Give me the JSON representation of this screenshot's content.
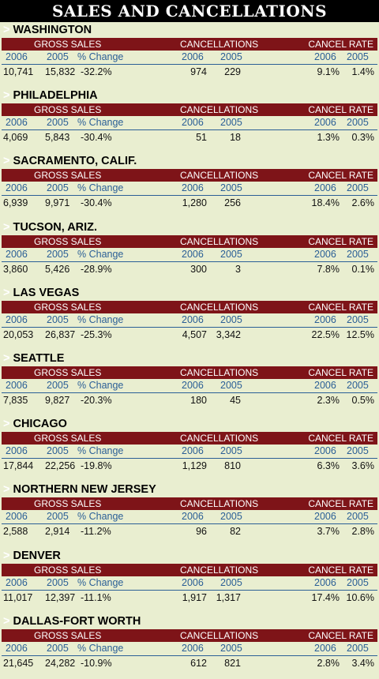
{
  "title": "SALES AND CANCELLATIONS",
  "labels": {
    "gross_sales": "GROSS SALES",
    "cancellations": "CANCELLATIONS",
    "cancel_rate": "CANCEL RATE",
    "year_2006": "2006",
    "year_2005": "2005",
    "pct_change": "% Change",
    "chevron": ">"
  },
  "colors": {
    "header_bar": "#7e1418",
    "year_text": "#2b5f96",
    "background": "#e9eed0"
  },
  "chart_data": {
    "type": "table",
    "title": "SALES AND CANCELLATIONS",
    "columns": [
      "Gross Sales 2006",
      "Gross Sales 2005",
      "% Change",
      "Cancellations 2006",
      "Cancellations 2005",
      "Cancel Rate 2006",
      "Cancel Rate 2005"
    ],
    "rows": [
      {
        "city": "WASHINGTON",
        "gs2006": "10,741",
        "gs2005": "15,832",
        "change": "-32.2%",
        "c2006": "974",
        "c2005": "229",
        "r2006": "9.1%",
        "r2005": "1.4%"
      },
      {
        "city": "PHILADELPHIA",
        "gs2006": "4,069",
        "gs2005": "5,843",
        "change": "-30.4%",
        "c2006": "51",
        "c2005": "18",
        "r2006": "1.3%",
        "r2005": "0.3%"
      },
      {
        "city": "SACRAMENTO, CALIF.",
        "gs2006": "6,939",
        "gs2005": "9,971",
        "change": "-30.4%",
        "c2006": "1,280",
        "c2005": "256",
        "r2006": "18.4%",
        "r2005": "2.6%"
      },
      {
        "city": "TUCSON, ARIZ.",
        "gs2006": "3,860",
        "gs2005": "5,426",
        "change": "-28.9%",
        "c2006": "300",
        "c2005": "3",
        "r2006": "7.8%",
        "r2005": "0.1%"
      },
      {
        "city": "LAS VEGAS",
        "gs2006": "20,053",
        "gs2005": "26,837",
        "change": "-25.3%",
        "c2006": "4,507",
        "c2005": "3,342",
        "r2006": "22.5%",
        "r2005": "12.5%"
      },
      {
        "city": "SEATTLE",
        "gs2006": "7,835",
        "gs2005": "9,827",
        "change": "-20.3%",
        "c2006": "180",
        "c2005": "45",
        "r2006": "2.3%",
        "r2005": "0.5%"
      },
      {
        "city": "CHICAGO",
        "gs2006": "17,844",
        "gs2005": "22,256",
        "change": "-19.8%",
        "c2006": "1,129",
        "c2005": "810",
        "r2006": "6.3%",
        "r2005": "3.6%"
      },
      {
        "city": "NORTHERN NEW JERSEY",
        "gs2006": "2,588",
        "gs2005": "2,914",
        "change": "-11.2%",
        "c2006": "96",
        "c2005": "82",
        "r2006": "3.7%",
        "r2005": "2.8%"
      },
      {
        "city": "DENVER",
        "gs2006": "11,017",
        "gs2005": "12,397",
        "change": "-11.1%",
        "c2006": "1,917",
        "c2005": "1,317",
        "r2006": "17.4%",
        "r2005": "10.6%"
      },
      {
        "city": "DALLAS-FORT WORTH",
        "gs2006": "21,645",
        "gs2005": "24,282",
        "change": "-10.9%",
        "c2006": "612",
        "c2005": "821",
        "r2006": "2.8%",
        "r2005": "3.4%"
      }
    ]
  }
}
